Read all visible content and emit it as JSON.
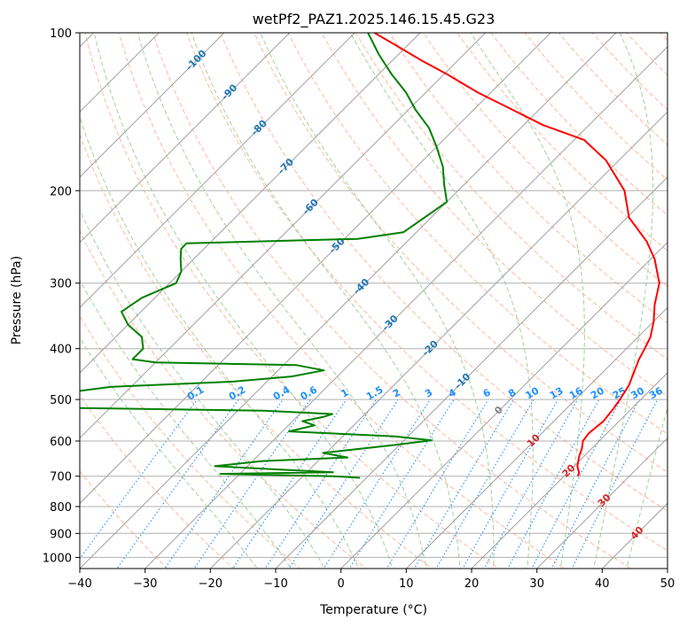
{
  "chart_data": {
    "type": "line",
    "subtype": "skew-t log-p diagram",
    "title": "wetPf2_PAZ1.2025.146.15.45.G23",
    "xlabel": "Temperature (°C)",
    "ylabel": "Pressure (hPa)",
    "xlim": [
      -40,
      50
    ],
    "ylim": [
      1050,
      100
    ],
    "y_scale": "log",
    "grid": true,
    "x_ticks": [
      -40,
      -30,
      -20,
      -10,
      0,
      10,
      20,
      30,
      40,
      50
    ],
    "x_tick_labels": [
      "−40",
      "−30",
      "−20",
      "−10",
      "0",
      "10",
      "20",
      "30",
      "40",
      "50"
    ],
    "y_ticks": [
      1000,
      900,
      800,
      700,
      600,
      500,
      400,
      300,
      200,
      100
    ],
    "y_tick_labels": [
      "1000",
      "900",
      "800",
      "700",
      "600",
      "500",
      "400",
      "300",
      "200",
      "100"
    ],
    "series": [
      {
        "role": "temperature",
        "color": "#ff0000",
        "points": [
          [
            22.1,
            700
          ],
          [
            21.8,
            690
          ],
          [
            20.5,
            670
          ],
          [
            19.2,
            640
          ],
          [
            18.5,
            620
          ],
          [
            17.5,
            600
          ],
          [
            17.2,
            580
          ],
          [
            17.6,
            550
          ],
          [
            17.2,
            520
          ],
          [
            16.8,
            500
          ],
          [
            16.0,
            470
          ],
          [
            14.6,
            440
          ],
          [
            13.6,
            420
          ],
          [
            12.8,
            400
          ],
          [
            11.9,
            380
          ],
          [
            10.0,
            355
          ],
          [
            7.6,
            330
          ],
          [
            5.0,
            300
          ],
          [
            0.6,
            270
          ],
          [
            -3.3,
            250
          ],
          [
            -9.7,
            225
          ],
          [
            -14.5,
            200
          ],
          [
            -22.0,
            175
          ],
          [
            -28.5,
            160
          ],
          [
            -37.0,
            150
          ],
          [
            -44.2,
            140
          ],
          [
            -52.0,
            130
          ],
          [
            -59.5,
            120
          ],
          [
            -65.5,
            113
          ],
          [
            -71.5,
            106
          ],
          [
            -77.0,
            100
          ]
        ]
      },
      {
        "role": "dewpoint",
        "color": "#008000",
        "points": [
          [
            -11.0,
            705
          ],
          [
            -15.5,
            700
          ],
          [
            -33.0,
            693
          ],
          [
            -16.0,
            688
          ],
          [
            -24.5,
            680
          ],
          [
            -35.0,
            670
          ],
          [
            -28.5,
            655
          ],
          [
            -16.0,
            645
          ],
          [
            -20.5,
            632
          ],
          [
            -10.5,
            610
          ],
          [
            -5.8,
            598
          ],
          [
            -12.0,
            588
          ],
          [
            -29.0,
            575
          ],
          [
            -26.0,
            560
          ],
          [
            -28.5,
            550
          ],
          [
            -26.0,
            540
          ],
          [
            -25.0,
            533
          ],
          [
            -36.0,
            525
          ],
          [
            -70.0,
            518
          ],
          [
            -75.0,
            515
          ],
          [
            -69.0,
            485
          ],
          [
            -63.0,
            473
          ],
          [
            -45.0,
            462
          ],
          [
            -37.0,
            452
          ],
          [
            -33.0,
            440
          ],
          [
            -38.0,
            430
          ],
          [
            -60.0,
            425
          ],
          [
            -64.0,
            419
          ],
          [
            -64.0,
            400
          ],
          [
            -66.0,
            380
          ],
          [
            -70.0,
            360
          ],
          [
            -73.0,
            340
          ],
          [
            -72.0,
            320
          ],
          [
            -69.0,
            300
          ],
          [
            -70.0,
            285
          ],
          [
            -72.0,
            270
          ],
          [
            -73.5,
            258
          ],
          [
            -73.5,
            252
          ],
          [
            -48.0,
            247
          ],
          [
            -42.0,
            240
          ],
          [
            -41.0,
            225
          ],
          [
            -40.0,
            210
          ],
          [
            -43.0,
            195
          ],
          [
            -46.0,
            180
          ],
          [
            -50.0,
            165
          ],
          [
            -54.0,
            152
          ],
          [
            -59.0,
            140
          ],
          [
            -63.0,
            130
          ],
          [
            -68.0,
            120
          ],
          [
            -73.0,
            110
          ],
          [
            -78.0,
            100
          ]
        ]
      }
    ],
    "reference_lines": {
      "isotherms": {
        "color": "#a0a0a0",
        "style": "solid"
      },
      "dry_adiabats": {
        "color": "#ffa07a",
        "style": "dashed"
      },
      "moist_adiabats": {
        "color": "#90c990",
        "style": "dashed"
      },
      "mixing_ratio": {
        "color": "#1e90ff",
        "style": "dotted"
      }
    },
    "isotherm_labels": [
      {
        "text": "-100",
        "T": -100,
        "p": 113
      },
      {
        "text": "-90",
        "T": -90,
        "p": 130
      },
      {
        "text": "-80",
        "T": -80,
        "p": 152
      },
      {
        "text": "-70",
        "T": -70,
        "p": 180
      },
      {
        "text": "-60",
        "T": -60,
        "p": 215
      },
      {
        "text": "-50",
        "T": -50,
        "p": 255
      },
      {
        "text": "-40",
        "T": -40,
        "p": 305
      },
      {
        "text": "-30",
        "T": -30,
        "p": 358
      },
      {
        "text": "-20",
        "T": -20,
        "p": 400
      },
      {
        "text": "-10",
        "T": -10,
        "p": 462
      },
      {
        "text": "0",
        "T": 0,
        "p": 525
      },
      {
        "text": "10",
        "T": 10,
        "p": 600
      },
      {
        "text": "20",
        "T": 20,
        "p": 685
      },
      {
        "text": "30",
        "T": 30,
        "p": 780
      },
      {
        "text": "40",
        "T": 40,
        "p": 900
      }
    ],
    "mixing_ratio_labels": [
      "0.1",
      "0.2",
      "0.4",
      "0.6",
      "1",
      "1.5",
      "2",
      "3",
      "4",
      "6",
      "8",
      "10",
      "13",
      "16",
      "20",
      "25",
      "30",
      "36"
    ]
  }
}
